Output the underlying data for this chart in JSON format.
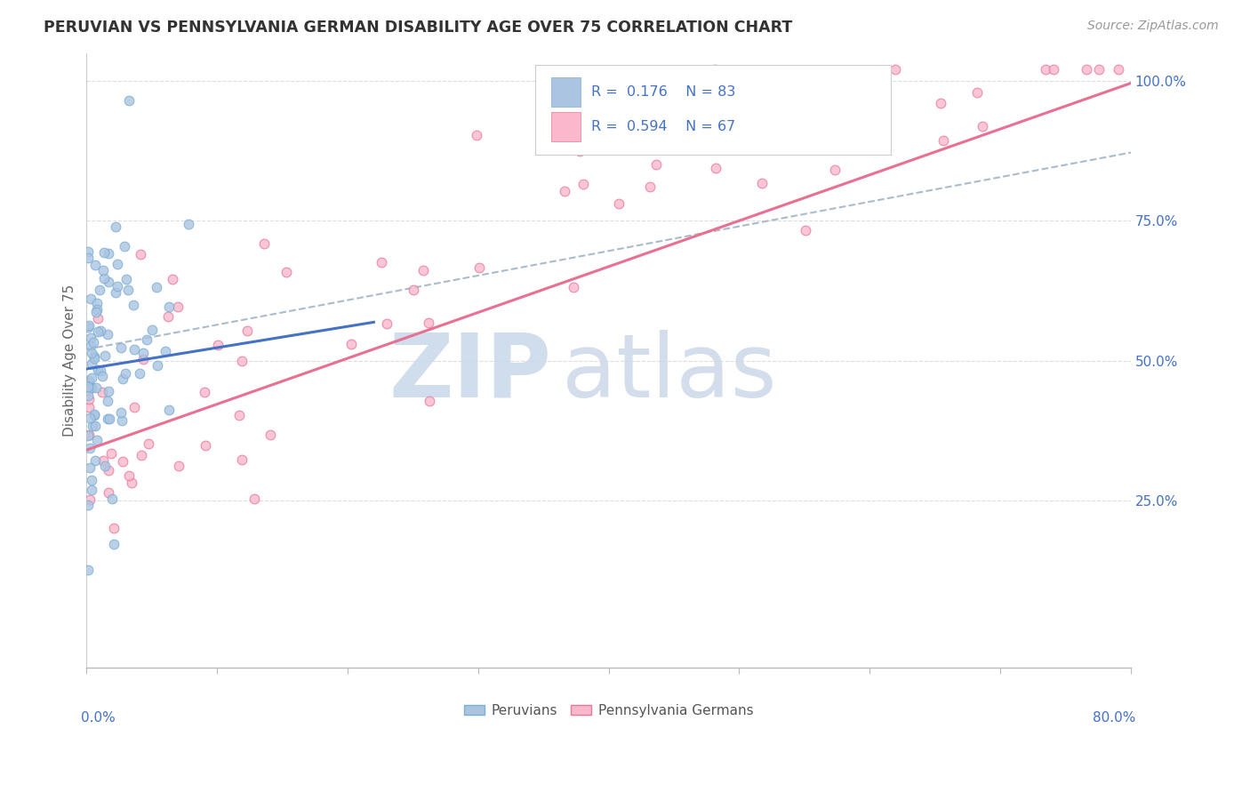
{
  "title": "PERUVIAN VS PENNSYLVANIA GERMAN DISABILITY AGE OVER 75 CORRELATION CHART",
  "source_text": "Source: ZipAtlas.com",
  "ylabel": "Disability Age Over 75",
  "color_peruvian": "#aac4e2",
  "color_penn_german": "#f9b8cc",
  "edge_peruvian": "#7bafd4",
  "edge_penn_german": "#e8789a",
  "trend_blue": "#4472c4",
  "trend_pink": "#e87090",
  "dashed_color": "#aabbcc",
  "legend_text_color": "#4472c4",
  "legend_r1": "R =  0.176",
  "legend_n1": "N = 83",
  "legend_r2": "R =  0.594",
  "legend_n2": "N = 67",
  "watermark_zip_color": "#c8d8ea",
  "watermark_atlas_color": "#ccd8e8",
  "axis_label_color": "#4472c4",
  "figsize": [
    14.06,
    8.92
  ],
  "dpi": 100,
  "xlim": [
    0.0,
    0.8
  ],
  "ylim": [
    -0.05,
    1.05
  ],
  "seed_peru": 42,
  "seed_penn": 99,
  "n_peru": 83,
  "n_penn": 67
}
